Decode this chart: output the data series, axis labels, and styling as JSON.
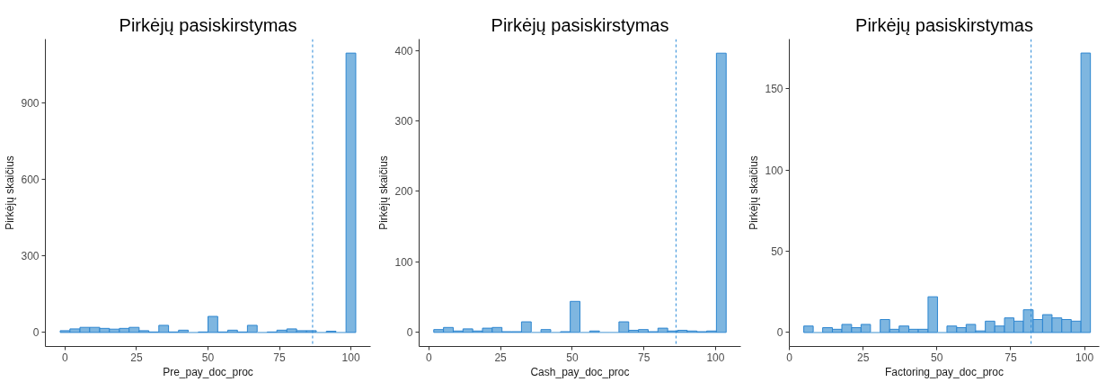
{
  "chart_data": [
    {
      "type": "histogram",
      "title": "Pirkėjų pasiskirstymas",
      "xlabel": "Pre_pay_doc_proc",
      "ylabel": "Pirkėjų skaičius",
      "color": "#7eb6e0",
      "bins": [
        -1.7,
        1.7,
        5.2,
        8.6,
        12.1,
        15.5,
        19.0,
        22.4,
        25.9,
        29.3,
        32.8,
        36.2,
        39.7,
        43.1,
        46.6,
        50.0,
        53.4,
        56.9,
        60.3,
        63.8,
        67.2,
        70.7,
        74.1,
        77.6,
        81.0,
        84.5,
        87.9,
        91.4,
        94.8,
        98.3,
        101.7
      ],
      "values": [
        7,
        14,
        20,
        20,
        16,
        13,
        16,
        20,
        7,
        2,
        28,
        2,
        9,
        0,
        2,
        63,
        2,
        9,
        2,
        28,
        0,
        2,
        9,
        14,
        7,
        7,
        0,
        5,
        0,
        1095
      ],
      "xlim": [
        -6.9,
        106.9
      ],
      "ylim": [
        -55,
        1150
      ],
      "xticks": [
        0,
        25,
        50,
        75,
        100
      ],
      "yticks": [
        0,
        300,
        600,
        900
      ],
      "ref_lines": [
        {
          "axis": "x",
          "value": 86.6,
          "color": "#2a8ad8",
          "line_style": "dashed"
        }
      ]
    },
    {
      "type": "histogram",
      "title": "Pirkėjų pasiskirstymas",
      "xlabel": "Cash_pay_doc_proc",
      "ylabel": "Pirkėjų skaičius",
      "color": "#7eb6e0",
      "bins": [
        1.7,
        5.1,
        8.5,
        11.9,
        15.3,
        18.7,
        22.1,
        25.5,
        28.9,
        32.3,
        35.7,
        39.1,
        42.5,
        45.9,
        49.3,
        52.7,
        56.1,
        59.5,
        62.9,
        66.3,
        69.7,
        73.1,
        76.5,
        79.9,
        83.3,
        86.7,
        90.1,
        93.5,
        96.9,
        100.3,
        103.7
      ],
      "values": [
        4,
        7,
        2,
        5,
        2,
        6,
        7,
        1,
        1,
        15,
        0,
        4,
        0,
        1,
        44,
        0,
        2,
        0,
        0,
        15,
        3,
        4,
        1,
        6,
        2,
        3,
        2,
        1,
        2,
        396
      ],
      "xlim": [
        -3.4,
        108.8
      ],
      "ylim": [
        -20,
        416
      ],
      "xticks": [
        0,
        25,
        50,
        75,
        100
      ],
      "yticks": [
        0,
        100,
        200,
        300,
        400
      ],
      "ref_lines": [
        {
          "axis": "x",
          "value": 86.2,
          "color": "#2a8ad8",
          "line_style": "dashed"
        }
      ]
    },
    {
      "type": "histogram",
      "title": "Pirkėjų pasiskirstymas",
      "xlabel": "Factoring_pay_doc_proc",
      "ylabel": "Pirkėjų skaičius",
      "color": "#7eb6e0",
      "bins": [
        4.9,
        8.1,
        11.3,
        14.6,
        17.8,
        21.1,
        24.3,
        27.5,
        30.8,
        34.0,
        37.2,
        40.5,
        43.7,
        47.0,
        50.2,
        53.4,
        56.7,
        59.9,
        63.1,
        66.4,
        69.6,
        72.9,
        76.1,
        79.3,
        82.6,
        85.8,
        89.0,
        92.3,
        95.5,
        98.8,
        102.0
      ],
      "values": [
        4,
        0,
        3,
        2,
        5,
        3,
        5,
        0,
        8,
        2,
        4,
        2,
        2,
        22,
        0,
        4,
        3,
        5,
        1,
        7,
        4,
        9,
        7,
        14,
        8,
        11,
        9,
        8,
        7,
        172
      ],
      "xlim": [
        0,
        105
      ],
      "ylim": [
        -8.6,
        180.6
      ],
      "xticks": [
        0,
        25,
        50,
        75,
        100
      ],
      "yticks": [
        0,
        50,
        100,
        150
      ],
      "ref_lines": [
        {
          "axis": "x",
          "value": 81.9,
          "color": "#2a8ad8",
          "line_style": "dashed"
        }
      ]
    }
  ]
}
